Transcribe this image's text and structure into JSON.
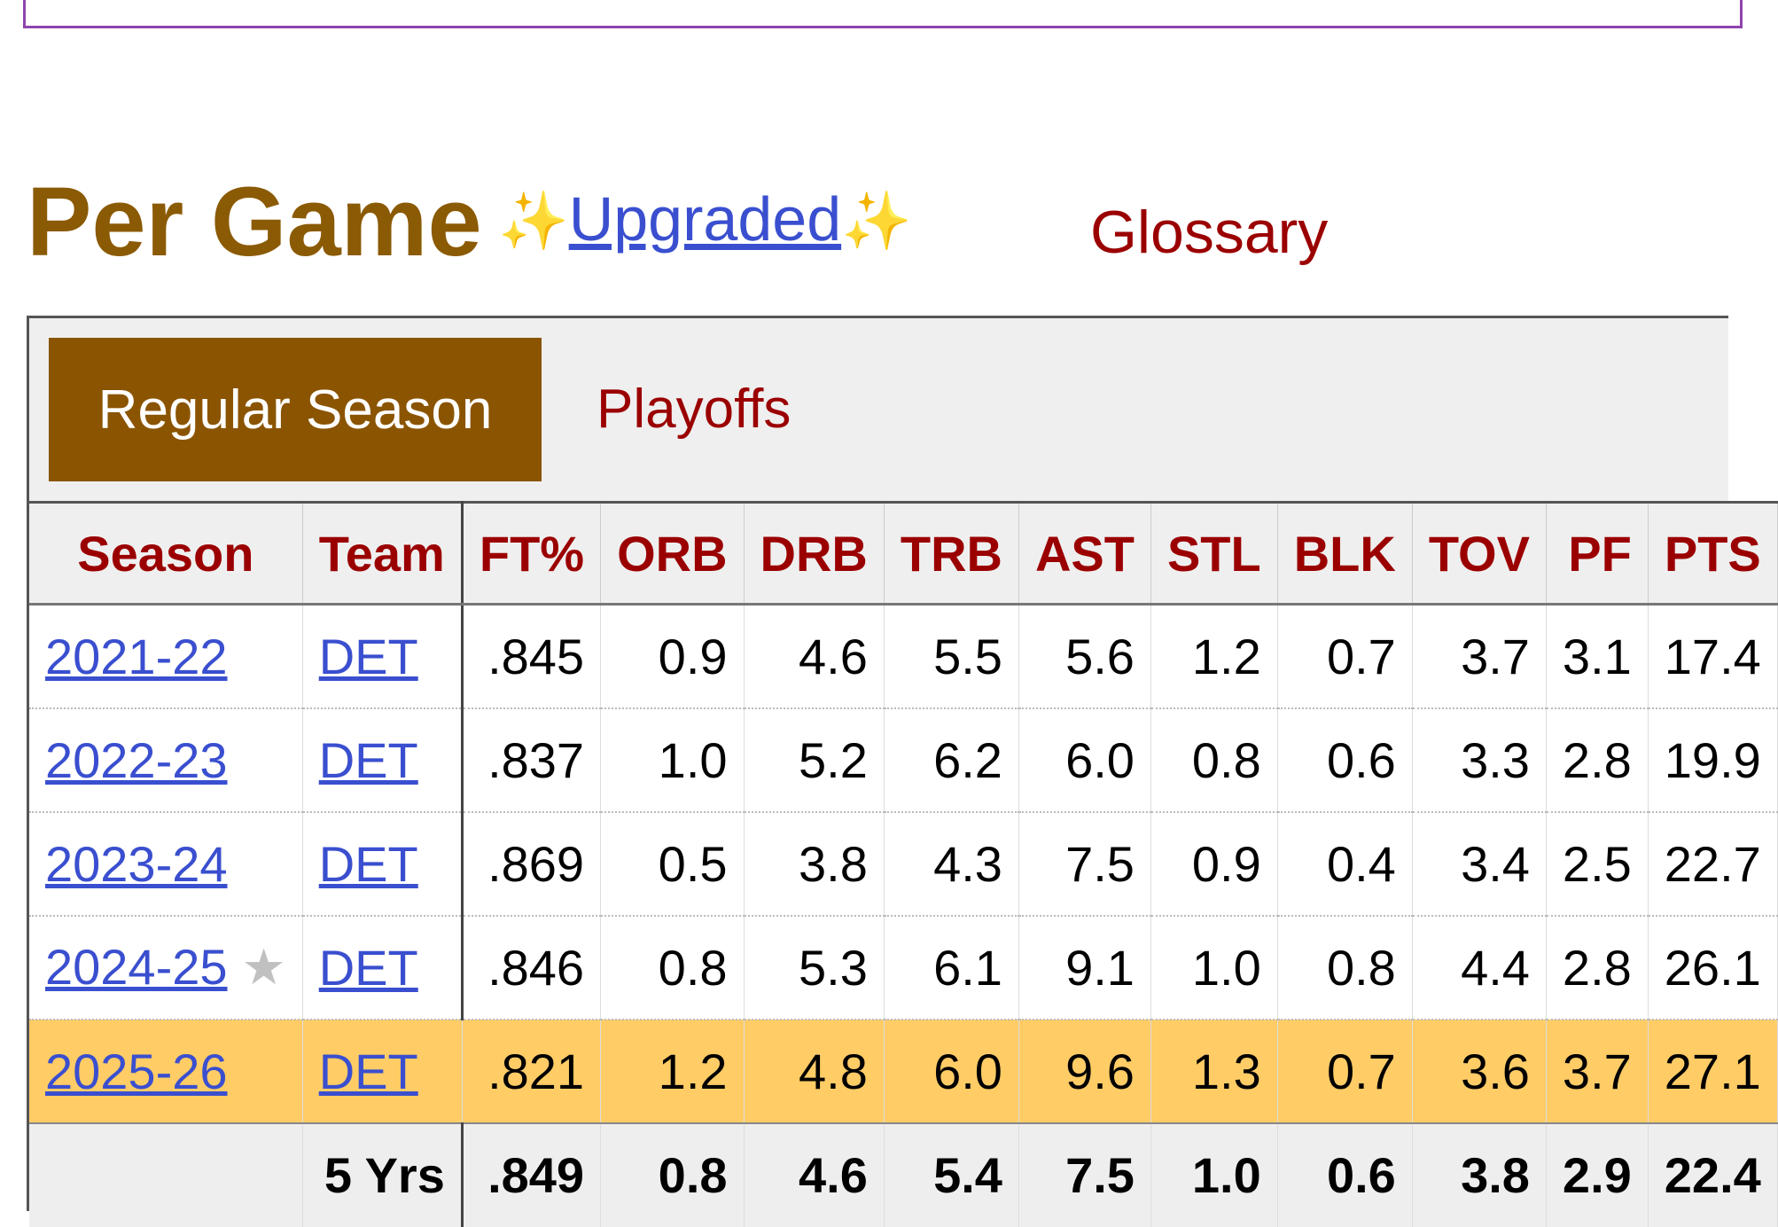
{
  "section": {
    "title": "Per Game",
    "upgraded_sparkle": "✨",
    "upgraded_label": "Upgraded",
    "glossary_label": "Glossary"
  },
  "tabs": {
    "regular": "Regular Season",
    "playoffs": "Playoffs"
  },
  "table": {
    "columns": [
      "Season",
      "Team",
      "FT%",
      "ORB",
      "DRB",
      "TRB",
      "AST",
      "STL",
      "BLK",
      "TOV",
      "PF",
      "PTS"
    ],
    "rows": [
      {
        "season": "2021-22",
        "team": "DET",
        "ft": ".845",
        "orb": "0.9",
        "drb": "4.6",
        "trb": "5.5",
        "ast": "5.6",
        "stl": "1.2",
        "blk": "0.7",
        "tov": "3.7",
        "pf": "3.1",
        "pts": "17.4",
        "star": ""
      },
      {
        "season": "2022-23",
        "team": "DET",
        "ft": ".837",
        "orb": "1.0",
        "drb": "5.2",
        "trb": "6.2",
        "ast": "6.0",
        "stl": "0.8",
        "blk": "0.6",
        "tov": "3.3",
        "pf": "2.8",
        "pts": "19.9",
        "star": ""
      },
      {
        "season": "2023-24",
        "team": "DET",
        "ft": ".869",
        "orb": "0.5",
        "drb": "3.8",
        "trb": "4.3",
        "ast": "7.5",
        "stl": "0.9",
        "blk": "0.4",
        "tov": "3.4",
        "pf": "2.5",
        "pts": "22.7",
        "star": ""
      },
      {
        "season": "2024-25",
        "team": "DET",
        "ft": ".846",
        "orb": "0.8",
        "drb": "5.3",
        "trb": "6.1",
        "ast": "9.1",
        "stl": "1.0",
        "blk": "0.8",
        "tov": "4.4",
        "pf": "2.8",
        "pts": "26.1",
        "star": "★"
      },
      {
        "season": "2025-26",
        "team": "DET",
        "ft": ".821",
        "orb": "1.2",
        "drb": "4.8",
        "trb": "6.0",
        "ast": "9.6",
        "stl": "1.3",
        "blk": "0.7",
        "tov": "3.6",
        "pf": "3.7",
        "pts": "27.1",
        "star": ""
      }
    ],
    "totals": {
      "label": "5 Yrs",
      "ft": ".849",
      "orb": "0.8",
      "drb": "4.6",
      "trb": "5.4",
      "ast": "7.5",
      "stl": "1.0",
      "blk": "0.6",
      "tov": "3.8",
      "pf": "2.9",
      "pts": "22.4"
    }
  },
  "colors": {
    "title": "#8b5a04",
    "active_tab": "#8b5400",
    "header_text": "#9b0000",
    "link": "#3a4fcf",
    "current_row": "#ffcc66"
  }
}
